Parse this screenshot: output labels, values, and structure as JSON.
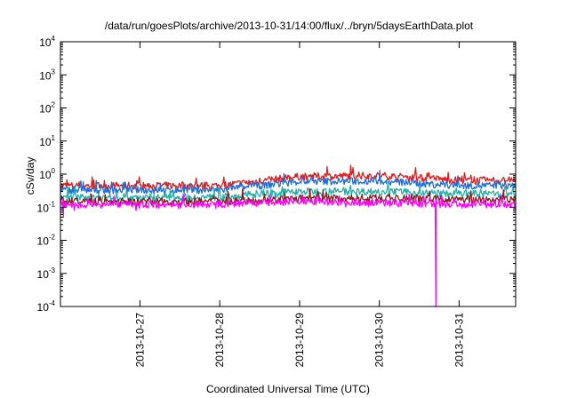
{
  "chart_data": {
    "type": "line",
    "title": "/data/run/goesPlots/archive/2013-10-31/14:00/flux/../bryn/5daysEarthData.plot",
    "xlabel": "Coordinated Universal Time (UTC)",
    "ylabel": "cSv/day",
    "yscale": "log",
    "ylim": [
      0.0001,
      10000
    ],
    "xlim": [
      "2013-10-26 00:05",
      "2013-10-31 17:00"
    ],
    "x_ticks": [
      "2013-10-27",
      "2013-10-28",
      "2013-10-29",
      "2013-10-30",
      "2013-10-31"
    ],
    "y_ticks": [
      {
        "base": "10",
        "exp": "4"
      },
      {
        "base": "10",
        "exp": "3"
      },
      {
        "base": "10",
        "exp": "2"
      },
      {
        "base": "10",
        "exp": "1"
      },
      {
        "base": "10",
        "exp": "0"
      },
      {
        "base": "10",
        "exp": "-1"
      },
      {
        "base": "10",
        "exp": "-2"
      },
      {
        "base": "10",
        "exp": "-3"
      },
      {
        "base": "10",
        "exp": "-4"
      }
    ],
    "grid": false,
    "legend": "none",
    "x": [
      "2013-10-26",
      "2013-10-27",
      "2013-10-28",
      "2013-10-29",
      "2013-10-30",
      "2013-10-31"
    ],
    "series": [
      {
        "color": "#e41a1c",
        "values": [
          0.45,
          0.45,
          0.45,
          0.85,
          0.9,
          0.65
        ],
        "dips": []
      },
      {
        "color": "#1f6fd8",
        "values": [
          0.33,
          0.33,
          0.33,
          0.6,
          0.62,
          0.45
        ],
        "dips": []
      },
      {
        "color": "#20b2aa",
        "values": [
          0.2,
          0.2,
          0.2,
          0.3,
          0.3,
          0.25
        ],
        "dips": []
      },
      {
        "color": "#8b1a1a",
        "values": [
          0.15,
          0.15,
          0.15,
          0.18,
          0.19,
          0.17
        ],
        "dips": []
      },
      {
        "color": "#ff00ff",
        "values": [
          0.12,
          0.12,
          0.12,
          0.15,
          0.14,
          0.12
        ],
        "dips": [
          {
            "x": "2013-10-26 01:00",
            "y": 0.05
          },
          {
            "x": "2013-10-30 17:00",
            "y": 0.0001
          }
        ]
      }
    ]
  }
}
